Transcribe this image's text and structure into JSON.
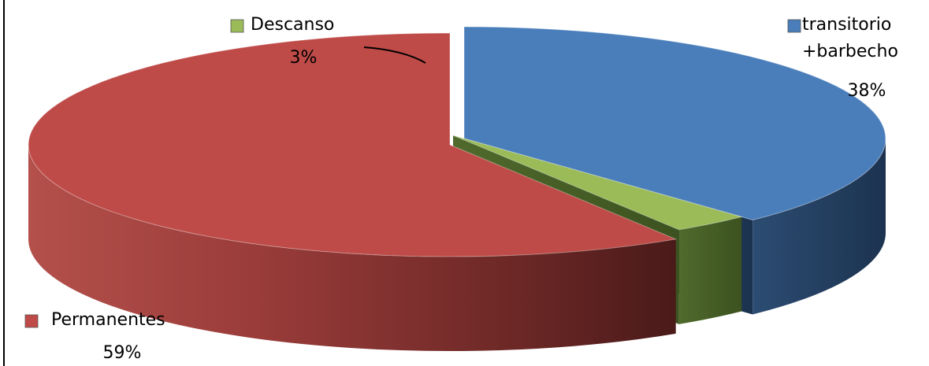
{
  "chart_data": {
    "type": "pie",
    "style": "3d-exploded",
    "categories": [
      "transitorio +barbecho",
      "Descanso",
      "Permanentes"
    ],
    "values": [
      38,
      3,
      59
    ],
    "colors": [
      "#4a7ebb",
      "#9bbb59",
      "#be4b48"
    ],
    "labels": [
      {
        "name_lines": [
          "transitorio",
          "+barbecho"
        ],
        "pct": "38%"
      },
      {
        "name_lines": [
          "Descanso"
        ],
        "pct": "3%"
      },
      {
        "name_lines": [
          "Permanentes"
        ],
        "pct": "59%"
      }
    ],
    "legend_keys": "square markers beside each label",
    "title": ""
  }
}
